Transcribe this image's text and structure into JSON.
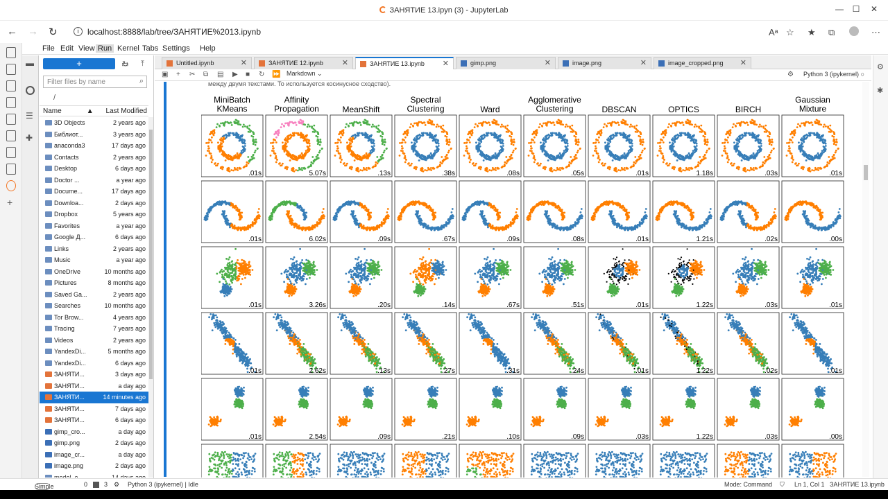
{
  "browser": {
    "title": "ЗАНЯТИЕ 13.ipyn (3) - JupyterLab",
    "url": "localhost:8888/lab/tree/ЗАНЯТИЕ%2013.ipynb"
  },
  "menu": [
    "File",
    "Edit",
    "View",
    "Run",
    "Kernel",
    "Tabs",
    "Settings",
    "Help"
  ],
  "menu_active": "Run",
  "filebrowser": {
    "new_label": "+",
    "filter_placeholder": "Filter files by name",
    "crumb": "/",
    "col_name": "Name",
    "col_modified": "Last Modified",
    "files": [
      {
        "name": "3D Objects",
        "modified": "2 years ago",
        "type": "folder"
      },
      {
        "name": "Библиот...",
        "modified": "3 years ago",
        "type": "folder"
      },
      {
        "name": "anaconda3",
        "modified": "17 days ago",
        "type": "folder"
      },
      {
        "name": "Contacts",
        "modified": "2 years ago",
        "type": "folder"
      },
      {
        "name": "Desktop",
        "modified": "6 days ago",
        "type": "folder"
      },
      {
        "name": "Doctor ...",
        "modified": "a year ago",
        "type": "folder"
      },
      {
        "name": "Docume...",
        "modified": "17 days ago",
        "type": "folder"
      },
      {
        "name": "Downloa...",
        "modified": "2 days ago",
        "type": "folder"
      },
      {
        "name": "Dropbox",
        "modified": "5 years ago",
        "type": "folder"
      },
      {
        "name": "Favorites",
        "modified": "a year ago",
        "type": "folder"
      },
      {
        "name": "Google Д...",
        "modified": "6 days ago",
        "type": "folder"
      },
      {
        "name": "Links",
        "modified": "2 years ago",
        "type": "folder"
      },
      {
        "name": "Music",
        "modified": "a year ago",
        "type": "folder"
      },
      {
        "name": "OneDrive",
        "modified": "10 months ago",
        "type": "folder"
      },
      {
        "name": "Pictures",
        "modified": "8 months ago",
        "type": "folder"
      },
      {
        "name": "Saved Ga...",
        "modified": "2 years ago",
        "type": "folder"
      },
      {
        "name": "Searches",
        "modified": "10 months ago",
        "type": "folder"
      },
      {
        "name": "Tor Brow...",
        "modified": "4 years ago",
        "type": "folder"
      },
      {
        "name": "Tracing",
        "modified": "7 years ago",
        "type": "folder"
      },
      {
        "name": "Videos",
        "modified": "2 years ago",
        "type": "folder"
      },
      {
        "name": "YandexDi...",
        "modified": "5 months ago",
        "type": "folder"
      },
      {
        "name": "YandexDi...",
        "modified": "6 days ago",
        "type": "folder"
      },
      {
        "name": "ЗАНЯТИ...",
        "modified": "3 days ago",
        "type": "nb"
      },
      {
        "name": "ЗАНЯТИ...",
        "modified": "a day ago",
        "type": "nb"
      },
      {
        "name": "ЗАНЯТИ...",
        "modified": "14 minutes ago",
        "type": "nb",
        "selected": true
      },
      {
        "name": "ЗАНЯТИ...",
        "modified": "7 days ago",
        "type": "nb"
      },
      {
        "name": "ЗАНЯТИ...",
        "modified": "6 days ago",
        "type": "nb"
      },
      {
        "name": "gimp_cro...",
        "modified": "a day ago",
        "type": "img"
      },
      {
        "name": "gimp.png",
        "modified": "2 days ago",
        "type": "img"
      },
      {
        "name": "image_cr...",
        "modified": "a day ago",
        "type": "img"
      },
      {
        "name": "image.png",
        "modified": "2 days ago",
        "type": "img"
      },
      {
        "name": "model_e...",
        "modified": "14 days ago",
        "type": "file"
      }
    ]
  },
  "tabs": [
    {
      "label": "Untitled.ipynb",
      "type": "nb"
    },
    {
      "label": "ЗАНЯТИЕ 12.ipynb",
      "type": "nb"
    },
    {
      "label": "ЗАНЯТИЕ 13.ipynb",
      "type": "nb",
      "current": true
    },
    {
      "label": "gimp.png",
      "type": "img"
    },
    {
      "label": "image.png",
      "type": "img"
    },
    {
      "label": "image_cropped.png",
      "type": "img"
    }
  ],
  "notebook": {
    "cell_type": "Markdown",
    "kernel": "Python 3 (ipykernel)",
    "output_text": "между двумя текстами. То используется косинусное сходство)."
  },
  "colors": {
    "blue": "#377eb8",
    "orange": "#ff7f00",
    "green": "#4daf4a",
    "pink": "#f781bf",
    "black": "#000000"
  },
  "clustering": {
    "algorithms": [
      "MiniBatch\nKMeans",
      "Affinity\nPropagation",
      "MeanShift",
      "Spectral\nClustering",
      "Ward",
      "Agglomerative\nClustering",
      "DBSCAN",
      "OPTICS",
      "BIRCH",
      "Gaussian\nMixture"
    ],
    "times": [
      [
        ".01s",
        "5.07s",
        ".13s",
        ".38s",
        ".08s",
        ".05s",
        ".01s",
        "1.18s",
        ".03s",
        ".01s"
      ],
      [
        ".01s",
        "6.02s",
        ".09s",
        ".67s",
        ".09s",
        ".08s",
        ".01s",
        "1.21s",
        ".02s",
        ".00s"
      ],
      [
        ".01s",
        "3.26s",
        ".20s",
        ".14s",
        ".67s",
        ".51s",
        ".01s",
        "1.22s",
        ".03s",
        ".01s"
      ],
      [
        ".01s",
        "2.62s",
        ".13s",
        ".27s",
        ".31s",
        ".24s",
        ".01s",
        "1.22s",
        ".02s",
        ".01s"
      ],
      [
        ".01s",
        "2.54s",
        ".09s",
        ".21s",
        ".10s",
        ".09s",
        ".03s",
        "1.22s",
        ".03s",
        ".00s"
      ]
    ]
  },
  "status": {
    "mode": "Simple",
    "counts": [
      "0",
      "3"
    ],
    "kernel": "Python 3 (ipykernel) | Idle",
    "cmd_mode": "Mode: Command",
    "position": "Ln 1, Col 1",
    "file": "ЗАНЯТИЕ 13.ipynb"
  }
}
